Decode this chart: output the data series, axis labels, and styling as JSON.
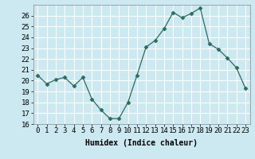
{
  "x": [
    0,
    1,
    2,
    3,
    4,
    5,
    6,
    7,
    8,
    9,
    10,
    11,
    12,
    13,
    14,
    15,
    16,
    17,
    18,
    19,
    20,
    21,
    22,
    23
  ],
  "y": [
    20.5,
    19.7,
    20.1,
    20.3,
    19.5,
    20.3,
    18.3,
    17.3,
    16.5,
    16.5,
    18.0,
    20.5,
    23.1,
    23.7,
    24.8,
    26.3,
    25.8,
    26.2,
    26.7,
    23.4,
    22.9,
    22.1,
    21.2,
    19.3
  ],
  "xlabel": "Humidex (Indice chaleur)",
  "ylim": [
    16,
    27
  ],
  "yticks": [
    16,
    17,
    18,
    19,
    20,
    21,
    22,
    23,
    24,
    25,
    26
  ],
  "xticks": [
    0,
    1,
    2,
    3,
    4,
    5,
    6,
    7,
    8,
    9,
    10,
    11,
    12,
    13,
    14,
    15,
    16,
    17,
    18,
    19,
    20,
    21,
    22,
    23
  ],
  "line_color": "#2d6b5e",
  "marker": "D",
  "marker_size": 2.5,
  "bg_color": "#cce8f0",
  "grid_color": "#ffffff",
  "label_fontsize": 7,
  "tick_fontsize": 6.5
}
